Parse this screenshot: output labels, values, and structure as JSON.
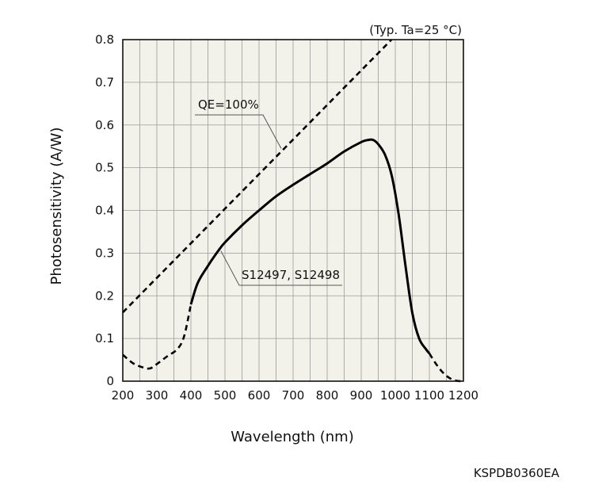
{
  "chart_data": {
    "type": "line",
    "note": "(Typ. Ta=25 °C)",
    "xlabel": "Wavelength (nm)",
    "ylabel": "Photosensitivity (A/W)",
    "xlim": [
      200,
      1200
    ],
    "ylim": [
      0,
      0.8
    ],
    "x_ticks": [
      200,
      300,
      400,
      500,
      600,
      700,
      800,
      900,
      1000,
      1100,
      1200
    ],
    "y_ticks": [
      "0",
      "0.1",
      "0.2",
      "0.3",
      "0.4",
      "0.5",
      "0.6",
      "0.7",
      "0.8"
    ],
    "grid": true,
    "background_color": "#f3f2ea",
    "series": [
      {
        "name": "QE=100%",
        "style": "dashed",
        "x": [
          200,
          989
        ],
        "y": [
          0.161,
          0.8
        ]
      },
      {
        "name": "S12497, S12498",
        "style": "solid",
        "x": [
          400,
          420,
          450,
          480,
          500,
          550,
          600,
          650,
          700,
          750,
          800,
          850,
          900,
          920,
          935,
          950,
          970,
          990,
          1010,
          1030,
          1050,
          1070,
          1090,
          1100
        ],
        "y": [
          0.18,
          0.23,
          0.27,
          0.305,
          0.325,
          0.365,
          0.4,
          0.433,
          0.46,
          0.485,
          0.51,
          0.538,
          0.56,
          0.565,
          0.565,
          0.555,
          0.53,
          0.48,
          0.39,
          0.27,
          0.16,
          0.1,
          0.075,
          0.065
        ]
      },
      {
        "name": "",
        "style": "dashed",
        "x": [
          200,
          230,
          260,
          280,
          300,
          330,
          360,
          380,
          400
        ],
        "y": [
          0.062,
          0.042,
          0.032,
          0.03,
          0.04,
          0.058,
          0.075,
          0.105,
          0.18
        ]
      },
      {
        "name": "",
        "style": "dashed",
        "x": [
          1100,
          1120,
          1140,
          1160,
          1180,
          1200
        ],
        "y": [
          0.065,
          0.04,
          0.02,
          0.007,
          0.001,
          0.0
        ]
      }
    ],
    "annotations": [
      {
        "text": "QE=100%",
        "target_x": 665,
        "target_y": 0.545
      },
      {
        "text": "S12497, S12498",
        "target_x": 488,
        "target_y": 0.305
      }
    ]
  },
  "footer_code": "KSPDB0360EA"
}
